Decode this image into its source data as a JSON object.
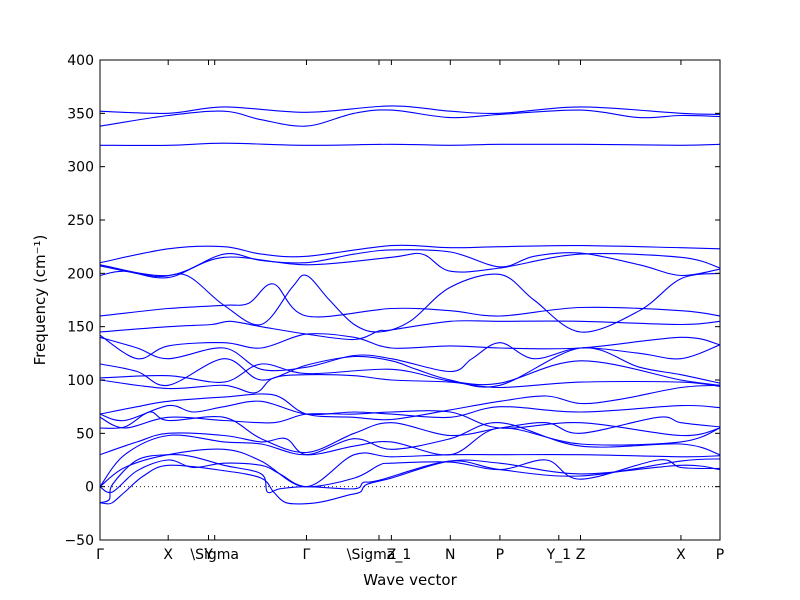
{
  "chart_data": {
    "type": "line",
    "xlabel": "Wave vector",
    "ylabel": "Frequency (cm⁻¹)",
    "ylim": [
      -50,
      400
    ],
    "yticks": [
      -50,
      0,
      50,
      100,
      150,
      200,
      250,
      300,
      350,
      400
    ],
    "grid": false,
    "zero_line": {
      "y": 0,
      "style": "dotted"
    },
    "series_color": "#0000ff",
    "x_ticks": [
      {
        "label": "Γ",
        "x": 0.0
      },
      {
        "label": "X",
        "x": 0.11
      },
      {
        "label": "Y",
        "x": 0.175
      },
      {
        "label": "\\Sigma",
        "x": 0.185
      },
      {
        "label": "Γ",
        "x": 0.333
      },
      {
        "label": "\\Sigma_1",
        "x": 0.45
      },
      {
        "label": "Z",
        "x": 0.47
      },
      {
        "label": "N",
        "x": 0.565
      },
      {
        "label": "P",
        "x": 0.645
      },
      {
        "label": "Y_1",
        "x": 0.74
      },
      {
        "label": "Z",
        "x": 0.775
      },
      {
        "label": "X",
        "x": 0.937
      },
      {
        "label": "P",
        "x": 1.0
      }
    ],
    "series": [
      {
        "x": [
          0,
          0.11,
          0.2,
          0.333,
          0.47,
          0.565,
          0.645,
          0.775,
          0.937,
          1.0
        ],
        "y": [
          352,
          350,
          356,
          351,
          357,
          352,
          350,
          356,
          350,
          349
        ]
      },
      {
        "x": [
          0,
          0.11,
          0.2,
          0.26,
          0.333,
          0.41,
          0.47,
          0.565,
          0.645,
          0.775,
          0.87,
          0.937,
          1.0
        ],
        "y": [
          338,
          348,
          352,
          344,
          338,
          350,
          353,
          346,
          349,
          353,
          346,
          348,
          347
        ]
      },
      {
        "x": [
          0,
          0.11,
          0.2,
          0.333,
          0.47,
          0.565,
          0.645,
          0.775,
          0.937,
          1.0
        ],
        "y": [
          320,
          320,
          322,
          320,
          321,
          320,
          321,
          321,
          320,
          321
        ]
      },
      {
        "x": [
          0,
          0.11,
          0.2,
          0.26,
          0.333,
          0.47,
          0.565,
          0.645,
          0.775,
          0.937,
          1.0
        ],
        "y": [
          210,
          223,
          225,
          218,
          216,
          226,
          224,
          225,
          226,
          224,
          223
        ]
      },
      {
        "x": [
          0,
          0.11,
          0.2,
          0.26,
          0.333,
          0.41,
          0.47,
          0.565,
          0.645,
          0.7,
          0.775,
          0.87,
          0.937,
          1.0
        ],
        "y": [
          208,
          198,
          218,
          212,
          210,
          218,
          222,
          220,
          206,
          216,
          219,
          208,
          198,
          204
        ]
      },
      {
        "x": [
          0,
          0.04,
          0.11,
          0.2,
          0.333,
          0.47,
          0.52,
          0.565,
          0.645,
          0.775,
          0.937,
          1.0
        ],
        "y": [
          198,
          202,
          196,
          215,
          208,
          215,
          218,
          202,
          205,
          218,
          215,
          205
        ]
      },
      {
        "x": [
          0,
          0.09,
          0.14,
          0.2,
          0.26,
          0.31,
          0.333,
          0.37,
          0.41,
          0.45,
          0.5,
          0.565,
          0.645,
          0.7,
          0.775,
          0.87,
          0.937,
          1.0
        ],
        "y": [
          207,
          197,
          198,
          170,
          152,
          187,
          198,
          175,
          152,
          145,
          155,
          187,
          199,
          175,
          145,
          165,
          195,
          200
        ]
      },
      {
        "x": [
          0,
          0.11,
          0.2,
          0.24,
          0.28,
          0.333,
          0.47,
          0.565,
          0.645,
          0.775,
          0.937,
          1.0
        ],
        "y": [
          160,
          167,
          170,
          172,
          190,
          160,
          167,
          165,
          160,
          168,
          165,
          160
        ]
      },
      {
        "x": [
          0,
          0.11,
          0.18,
          0.21,
          0.26,
          0.333,
          0.41,
          0.45,
          0.47,
          0.565,
          0.645,
          0.775,
          0.937,
          1.0
        ],
        "y": [
          145,
          150,
          152,
          155,
          150,
          143,
          138,
          146,
          147,
          155,
          155,
          155,
          152,
          155
        ]
      },
      {
        "x": [
          0,
          0.06,
          0.11,
          0.2,
          0.26,
          0.333,
          0.41,
          0.47,
          0.565,
          0.645,
          0.775,
          0.937,
          1.0
        ],
        "y": [
          142,
          120,
          132,
          135,
          130,
          143,
          140,
          130,
          132,
          130,
          130,
          140,
          133
        ]
      },
      {
        "x": [
          0,
          0.06,
          0.11,
          0.2,
          0.26,
          0.333,
          0.41,
          0.47,
          0.565,
          0.6,
          0.645,
          0.7,
          0.775,
          0.87,
          0.937,
          1.0
        ],
        "y": [
          140,
          130,
          120,
          130,
          110,
          112,
          123,
          120,
          108,
          120,
          135,
          120,
          130,
          125,
          120,
          133
        ]
      },
      {
        "x": [
          0,
          0.06,
          0.11,
          0.2,
          0.26,
          0.333,
          0.41,
          0.47,
          0.51,
          0.565,
          0.645,
          0.775,
          0.87,
          0.937,
          1.0
        ],
        "y": [
          115,
          108,
          95,
          120,
          100,
          114,
          122,
          118,
          110,
          100,
          95,
          130,
          112,
          105,
          97
        ]
      },
      {
        "x": [
          0,
          0.11,
          0.2,
          0.26,
          0.333,
          0.47,
          0.565,
          0.645,
          0.775,
          0.937,
          1.0
        ],
        "y": [
          102,
          104,
          98,
          115,
          106,
          110,
          99,
          97,
          118,
          100,
          95
        ]
      },
      {
        "x": [
          0,
          0.11,
          0.2,
          0.25,
          0.28,
          0.333,
          0.41,
          0.47,
          0.565,
          0.645,
          0.775,
          0.937,
          1.0
        ],
        "y": [
          100,
          92,
          95,
          88,
          102,
          105,
          104,
          100,
          98,
          93,
          98,
          98,
          94
        ]
      },
      {
        "x": [
          0,
          0.06,
          0.11,
          0.2,
          0.28,
          0.333,
          0.41,
          0.47,
          0.565,
          0.645,
          0.72,
          0.775,
          0.84,
          0.937,
          1.0
        ],
        "y": [
          68,
          75,
          80,
          84,
          86,
          68,
          65,
          63,
          72,
          80,
          85,
          78,
          82,
          93,
          95
        ]
      },
      {
        "x": [
          0,
          0.04,
          0.11,
          0.15,
          0.2,
          0.26,
          0.333,
          0.41,
          0.47,
          0.565,
          0.645,
          0.775,
          0.937,
          1.0
        ],
        "y": [
          68,
          62,
          76,
          70,
          75,
          80,
          68,
          70,
          68,
          65,
          75,
          70,
          76,
          74
        ]
      },
      {
        "x": [
          0,
          0.04,
          0.11,
          0.2,
          0.28,
          0.333,
          0.41,
          0.47,
          0.565,
          0.645,
          0.775,
          0.937,
          1.0
        ],
        "y": [
          65,
          55,
          65,
          62,
          60,
          68,
          68,
          70,
          70,
          55,
          60,
          48,
          55
        ]
      },
      {
        "x": [
          0,
          0.04,
          0.08,
          0.11,
          0.2,
          0.26,
          0.333,
          0.41,
          0.47,
          0.565,
          0.645,
          0.72,
          0.775,
          0.9,
          0.937,
          1.0
        ],
        "y": [
          55,
          56,
          70,
          62,
          65,
          45,
          32,
          50,
          60,
          48,
          55,
          60,
          50,
          65,
          60,
          56
        ]
      },
      {
        "x": [
          0,
          0.06,
          0.11,
          0.2,
          0.26,
          0.3,
          0.333,
          0.41,
          0.47,
          0.565,
          0.645,
          0.775,
          0.937,
          1.0
        ],
        "y": [
          30,
          42,
          50,
          48,
          42,
          45,
          30,
          38,
          42,
          30,
          55,
          40,
          42,
          55
        ]
      },
      {
        "x": [
          0,
          0.04,
          0.11,
          0.2,
          0.26,
          0.333,
          0.41,
          0.47,
          0.565,
          0.645,
          0.775,
          0.937,
          1.0
        ],
        "y": [
          0,
          30,
          48,
          42,
          40,
          30,
          45,
          35,
          45,
          60,
          38,
          40,
          30
        ]
      },
      {
        "x": [
          0,
          0.04,
          0.11,
          0.2,
          0.26,
          0.333,
          0.41,
          0.47,
          0.565,
          0.645,
          0.775,
          0.937,
          1.0
        ],
        "y": [
          0,
          18,
          30,
          35,
          24,
          0,
          30,
          28,
          30,
          30,
          30,
          28,
          29
        ]
      },
      {
        "x": [
          0,
          0.02,
          0.06,
          0.11,
          0.15,
          0.2,
          0.26,
          0.29,
          0.333,
          0.41,
          0.45,
          0.47,
          0.565,
          0.645,
          0.72,
          0.775,
          0.9,
          0.937,
          1.0
        ],
        "y": [
          0,
          -5,
          15,
          25,
          18,
          22,
          20,
          12,
          0,
          8,
          20,
          22,
          23,
          16,
          25,
          7,
          25,
          18,
          17
        ]
      },
      {
        "x": [
          0,
          0.015,
          0.02,
          0.06,
          0.11,
          0.15,
          0.2,
          0.26,
          0.27,
          0.29,
          0.333,
          0.41,
          0.425,
          0.45,
          0.565,
          0.645,
          0.775,
          0.937,
          1.0
        ],
        "y": [
          -15,
          -12,
          2,
          25,
          30,
          28,
          20,
          12,
          -5,
          -2,
          0,
          -2,
          4,
          6,
          24,
          16,
          10,
          24,
          26
        ]
      },
      {
        "x": [
          0,
          0.01,
          0.02,
          0.04,
          0.07,
          0.11,
          0.2,
          0.26,
          0.28,
          0.3,
          0.333,
          0.36,
          0.4,
          0.42,
          0.43,
          0.47,
          0.565,
          0.645,
          0.775,
          0.937,
          1.0
        ],
        "y": [
          -15,
          -16,
          -15,
          -5,
          10,
          20,
          15,
          8,
          -5,
          -15,
          -16,
          -14,
          -8,
          -5,
          2,
          8,
          24,
          22,
          12,
          20,
          16
        ]
      }
    ]
  }
}
